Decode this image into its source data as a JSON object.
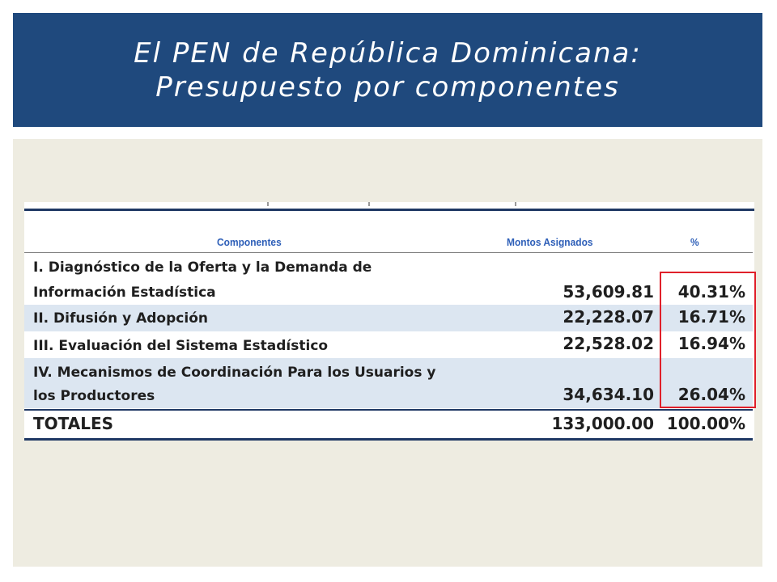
{
  "slide": {
    "title_line1": "El PEN de República Dominicana:",
    "title_line2": "Presupuesto por componentes"
  },
  "table": {
    "headers": {
      "componentes": "Componentes",
      "montos": "Montos Asignados",
      "pct": "%"
    },
    "rows": [
      {
        "label_line1": "I. Diagnóstico de la Oferta y la Demanda de",
        "label_line2": "Información Estadística",
        "monto": "53,609.81",
        "pct": "40.31%"
      },
      {
        "label_line1": "II. Difusión y Adopción",
        "label_line2": "",
        "monto": "22,228.07",
        "pct": "16.71%"
      },
      {
        "label_line1": "III. Evaluación del Sistema Estadístico",
        "label_line2": "",
        "monto": "22,528.02",
        "pct": "16.94%"
      },
      {
        "label_line1": "IV. Mecanismos de Coordinación Para los Usuarios y",
        "label_line2": "los Productores",
        "monto": "34,634.10",
        "pct": "26.04%"
      }
    ],
    "totals": {
      "label": "TOTALES",
      "monto": "133,000.00",
      "pct": "100.00%"
    },
    "highlight_color": "#e0202a",
    "row_shade_color": "#dce6f1"
  }
}
